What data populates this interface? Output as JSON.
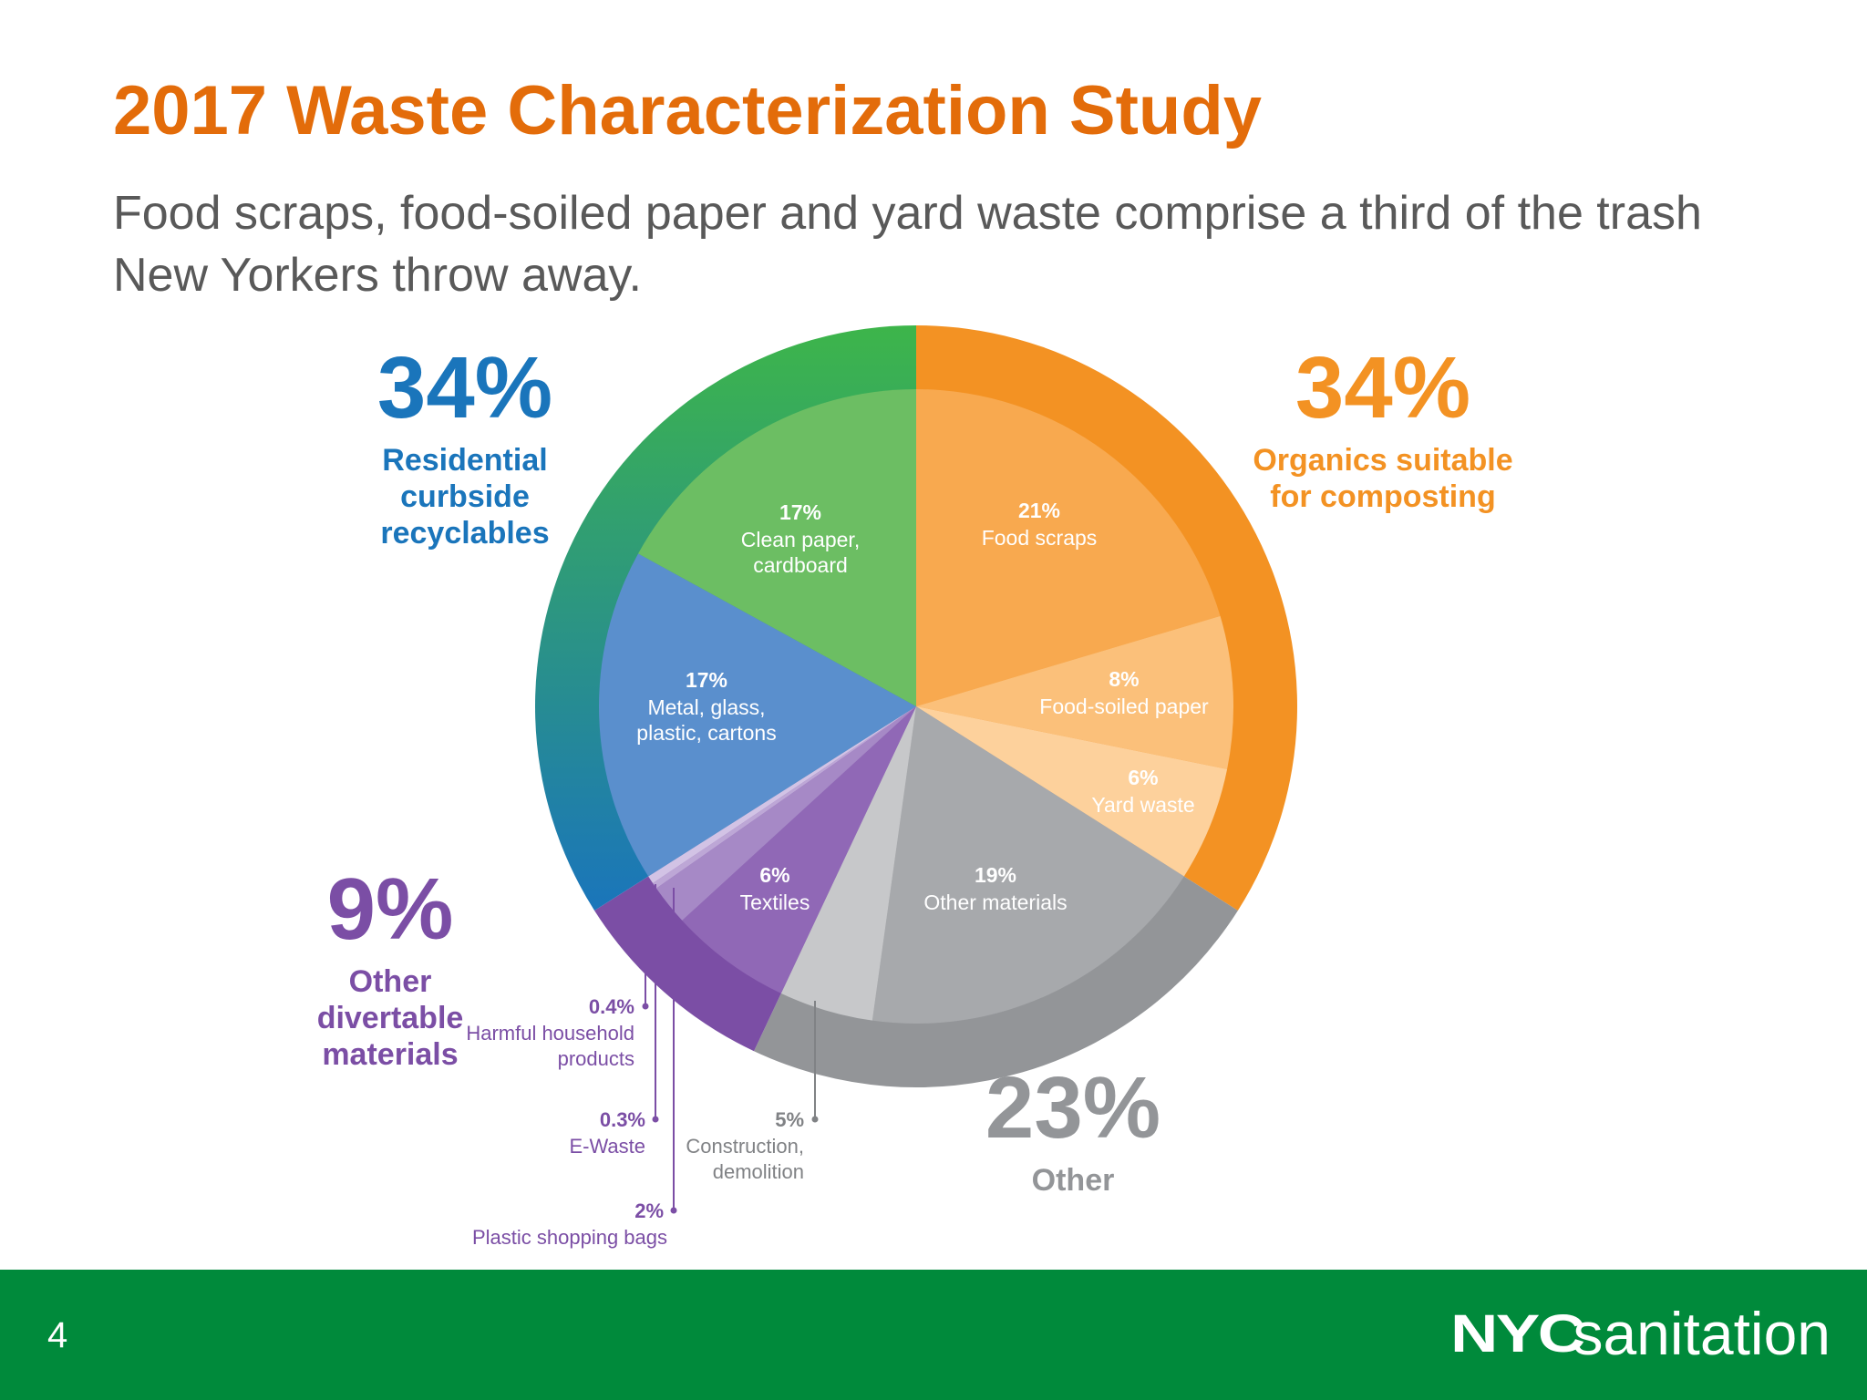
{
  "slide": {
    "title": "2017 Waste Characterization Study",
    "subtitle": "Food scraps, food-soiled paper and yard waste comprise a third of the trash New Yorkers throw away.",
    "page_number": "4"
  },
  "footer": {
    "background": "#008a3b",
    "logo_nyc": "NYC",
    "logo_text": "sanitation"
  },
  "chart_data": {
    "type": "pie",
    "unit": "%",
    "groups": [
      {
        "name": "Organics suitable for composting",
        "percent_label": "34%",
        "value": 34,
        "color": "#f39223",
        "text_color": "#f39223",
        "slices": [
          {
            "value_label": "21%",
            "label": "Food scraps",
            "value": 21,
            "color": "#f8a94f"
          },
          {
            "value_label": "8%",
            "label": "Food-soiled paper",
            "value": 8,
            "color": "#fbc07a"
          },
          {
            "value_label": "6%",
            "label": "Yard waste",
            "value": 6,
            "color": "#fdd19c"
          }
        ]
      },
      {
        "name": "Other",
        "percent_label": "23%",
        "value": 23,
        "color": "#939598",
        "text_color": "#939598",
        "slices": [
          {
            "value_label": "19%",
            "label": "Other materials",
            "value": 19,
            "color": "#a7a9ac"
          },
          {
            "value_label": "5%",
            "label": "Construction, demolition",
            "value": 5,
            "color": "#c7c8ca"
          }
        ]
      },
      {
        "name": "Other divertable materials",
        "percent_label": "9%",
        "value": 9,
        "color": "#7b4ea5",
        "text_color": "#7b4ea5",
        "slices": [
          {
            "value_label": "6%",
            "label": "Textiles",
            "value": 6,
            "color": "#9068b6"
          },
          {
            "value_label": "2%",
            "label": "Plastic shopping bags",
            "value": 2,
            "color": "#a689c6"
          },
          {
            "value_label": "0.3%",
            "label": "E-Waste",
            "value": 0.3,
            "color": "#bda7d6"
          },
          {
            "value_label": "0.4%",
            "label": "Harmful household products",
            "value": 0.4,
            "color": "#d2c3e5"
          }
        ]
      },
      {
        "name": "Residential curbside recyclables",
        "percent_label": "34%",
        "value": 34,
        "color": "#1a75bb",
        "text_color": "#1a75bb",
        "slices": [
          {
            "value_label": "17%",
            "label": "Metal, glass, plastic, cartons",
            "value": 17,
            "color": "#5a8fcd"
          },
          {
            "value_label": "17%",
            "label": "Clean paper, cardboard",
            "value": 17,
            "color": "#6cbe63"
          }
        ]
      }
    ]
  }
}
